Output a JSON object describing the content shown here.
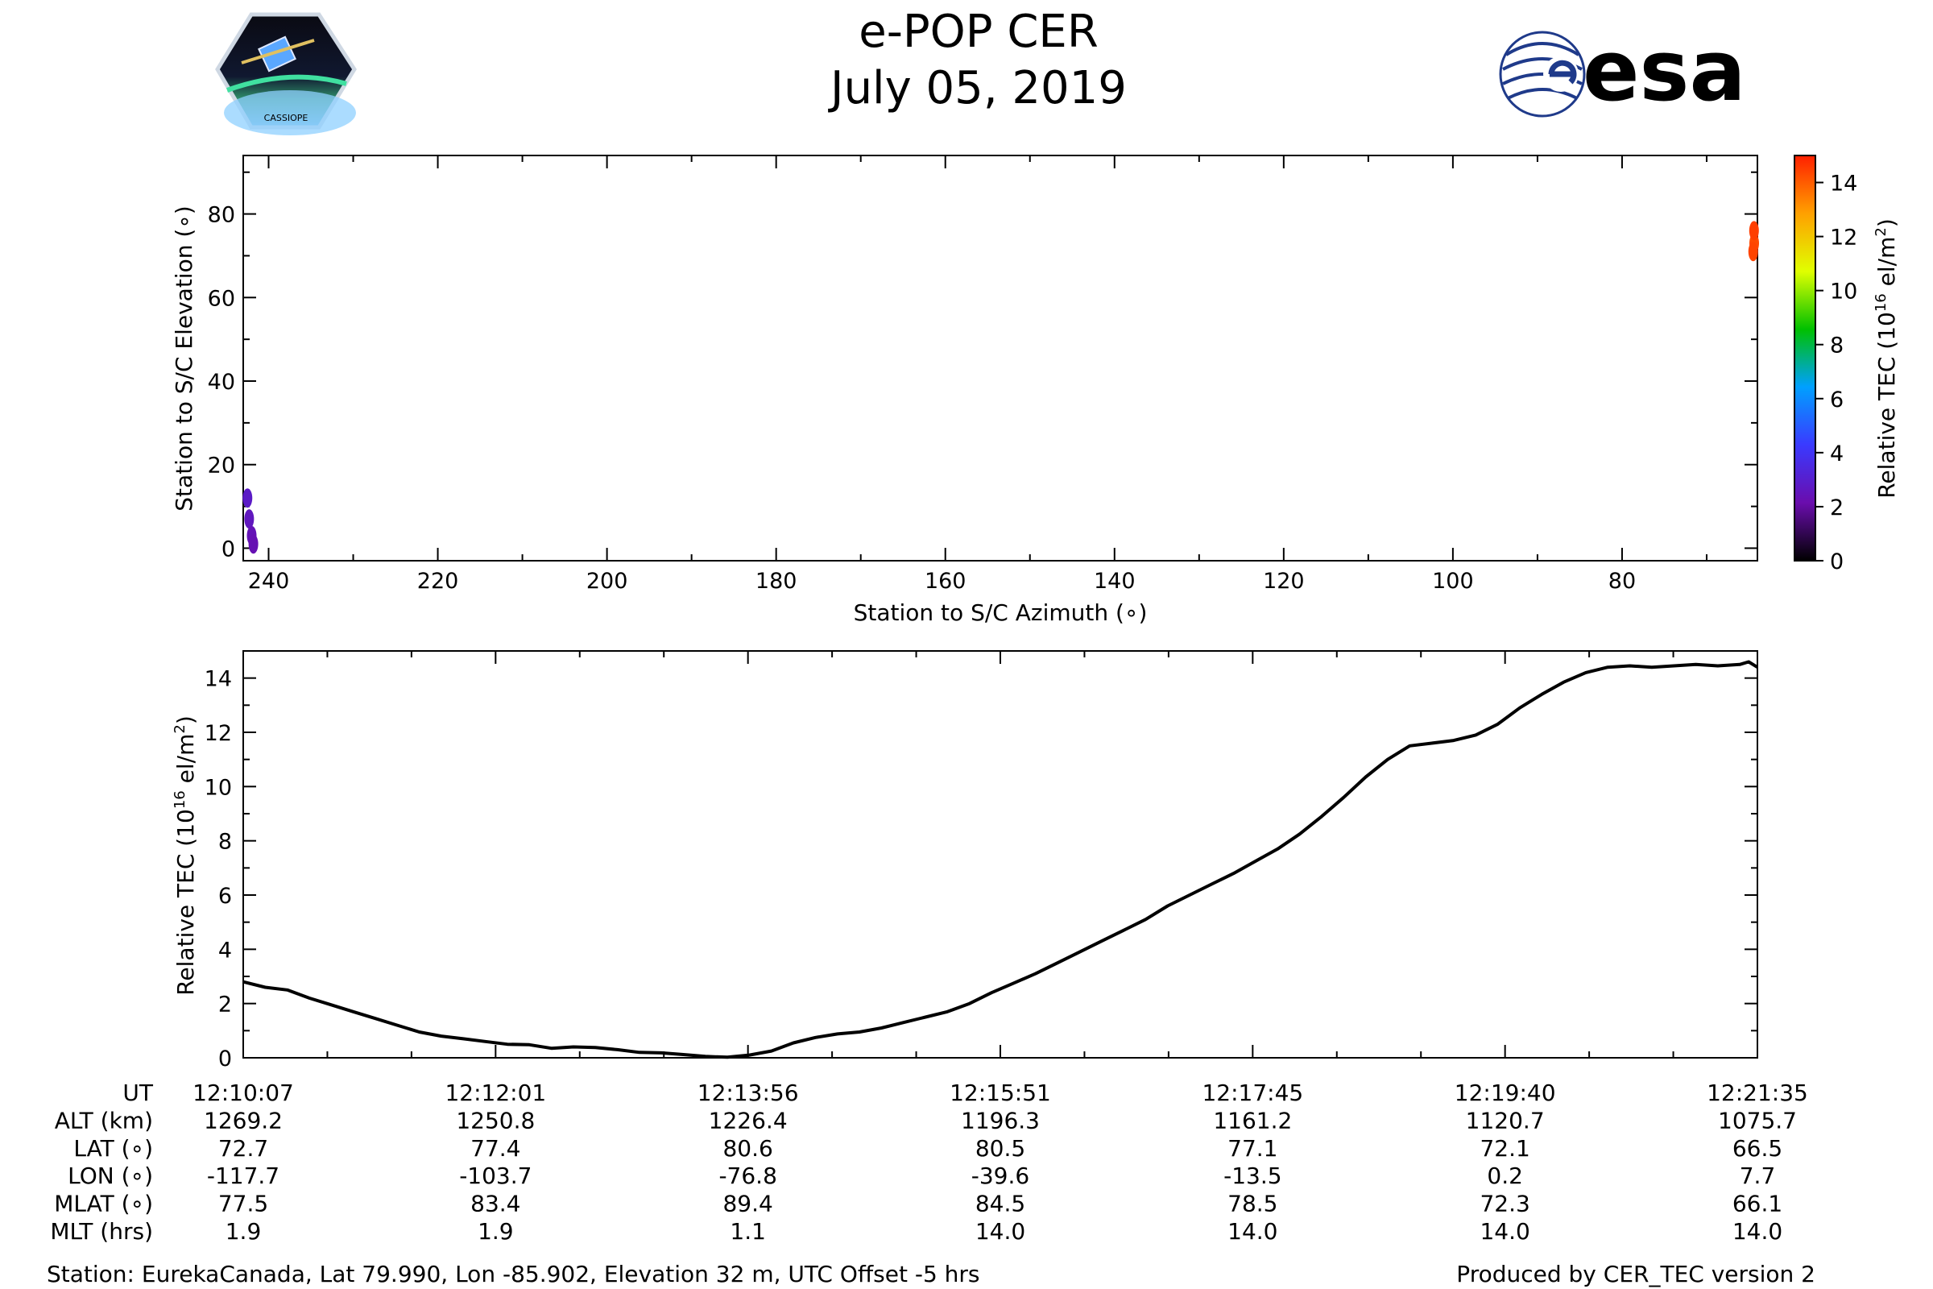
{
  "header": {
    "title": "e-POP CER",
    "date": "July 05, 2019",
    "left_logo": "cassiope-mission-logo",
    "left_logo_text": "CASSIOPE",
    "right_logo": "esa-logo",
    "right_logo_text": "esa",
    "esa_color": "#1f3a8a"
  },
  "colors": {
    "line": "#000000",
    "purple": "#7b2ff7",
    "red": "#ff2d00"
  },
  "colorbar": {
    "label_main": "Relative TEC (10",
    "label_sup": "16",
    "label_end": " el/m",
    "label_sup2": "2",
    "label_close": ")",
    "ticks": [
      0,
      2,
      4,
      6,
      8,
      10,
      12,
      14
    ],
    "range": [
      0,
      15
    ],
    "stops": [
      "#000000",
      "#6a0dad",
      "#3a3aff",
      "#00a0ff",
      "#00c000",
      "#e0ff00",
      "#ffa000",
      "#ff2000"
    ]
  },
  "chart_data": [
    {
      "type": "scatter",
      "title": "",
      "xlabel": "Station to S/C Azimuth (∘)",
      "ylabel": "Station to S/C Elevation (∘)",
      "xlim": [
        243,
        64
      ],
      "ylim": [
        -3,
        94
      ],
      "xticks": [
        240,
        220,
        200,
        180,
        160,
        140,
        120,
        100,
        80
      ],
      "yticks": [
        0,
        20,
        40,
        60,
        80
      ],
      "points": [
        {
          "az": 242.5,
          "el": 12,
          "tec": 2.8
        },
        {
          "az": 242.3,
          "el": 7,
          "tec": 2.6
        },
        {
          "az": 242.0,
          "el": 3,
          "tec": 2.4
        },
        {
          "az": 241.8,
          "el": 1,
          "tec": 2.3
        },
        {
          "az": 64.3,
          "el": 73,
          "tec": 14.3
        },
        {
          "az": 64.4,
          "el": 76,
          "tec": 14.5
        },
        {
          "az": 64.5,
          "el": 71,
          "tec": 14.4
        }
      ]
    },
    {
      "type": "line",
      "title": "",
      "xlabel": "",
      "ylabel": "Relative TEC (10",
      "ylabel_sup": "16",
      "ylabel_end": " el/m",
      "ylabel_sup2": "2",
      "ylabel_close": ")",
      "xlim": [
        0,
        688
      ],
      "ylim": [
        0,
        15
      ],
      "yticks": [
        0,
        2,
        4,
        6,
        8,
        10,
        12,
        14
      ],
      "x": [
        0,
        10,
        20,
        30,
        40,
        50,
        60,
        70,
        80,
        90,
        100,
        110,
        120,
        130,
        140,
        150,
        160,
        170,
        180,
        190,
        200,
        210,
        220,
        230,
        240,
        250,
        260,
        270,
        280,
        290,
        300,
        310,
        320,
        330,
        340,
        350,
        360,
        370,
        380,
        390,
        400,
        410,
        420,
        430,
        440,
        450,
        460,
        470,
        480,
        490,
        500,
        510,
        520,
        530,
        540,
        550,
        560,
        570,
        580,
        590,
        600,
        610,
        620,
        630,
        640,
        650,
        660,
        670,
        680,
        684,
        688
      ],
      "values": [
        2.8,
        2.6,
        2.5,
        2.2,
        1.95,
        1.7,
        1.45,
        1.2,
        0.95,
        0.8,
        0.7,
        0.6,
        0.5,
        0.48,
        0.35,
        0.4,
        0.38,
        0.3,
        0.2,
        0.18,
        0.12,
        0.05,
        0.02,
        0.1,
        0.25,
        0.55,
        0.75,
        0.88,
        0.95,
        1.1,
        1.3,
        1.5,
        1.7,
        2.0,
        2.4,
        2.75,
        3.1,
        3.5,
        3.9,
        4.3,
        4.7,
        5.1,
        5.6,
        6.0,
        6.4,
        6.8,
        7.25,
        7.7,
        8.25,
        8.9,
        9.6,
        10.35,
        11.0,
        11.5,
        11.6,
        11.7,
        11.9,
        12.3,
        12.9,
        13.4,
        13.85,
        14.2,
        14.4,
        14.45,
        14.4,
        14.45,
        14.5,
        14.45,
        14.5,
        14.6,
        14.4
      ]
    }
  ],
  "ephemeris": {
    "row_labels": [
      "UT",
      "ALT (km)",
      "LAT (∘)",
      "LON (∘)",
      "MLAT (∘)",
      "MLT (hrs)"
    ],
    "columns": [
      [
        "12:10:07",
        "1269.2",
        "72.7",
        "-117.7",
        "77.5",
        "1.9"
      ],
      [
        "12:12:01",
        "1250.8",
        "77.4",
        "-103.7",
        "83.4",
        "1.9"
      ],
      [
        "12:13:56",
        "1226.4",
        "80.6",
        "-76.8",
        "89.4",
        "1.1"
      ],
      [
        "12:15:51",
        "1196.3",
        "80.5",
        "-39.6",
        "84.5",
        "14.0"
      ],
      [
        "12:17:45",
        "1161.2",
        "77.1",
        "-13.5",
        "78.5",
        "14.0"
      ],
      [
        "12:19:40",
        "1120.7",
        "72.1",
        "0.2",
        "72.3",
        "14.0"
      ],
      [
        "12:21:35",
        "1075.7",
        "66.5",
        "7.7",
        "66.1",
        "14.0"
      ]
    ]
  },
  "footer": {
    "station": "Station: EurekaCanada, Lat 79.990, Lon -85.902, Elevation 32 m, UTC Offset -5 hrs",
    "produced_by": "Produced by CER_TEC version 2"
  }
}
